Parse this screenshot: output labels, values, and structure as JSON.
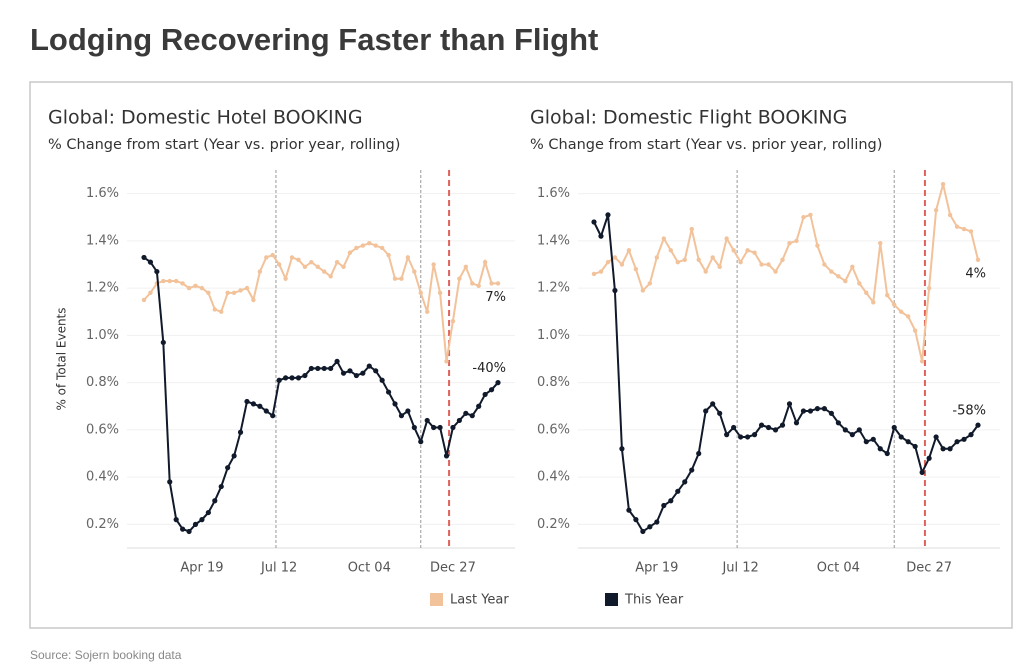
{
  "title": "Lodging Recovering Faster than Flight",
  "source": "Source: Sojern booking data",
  "chart_data": [
    {
      "type": "line",
      "title": "Global: Domestic Hotel BOOKING",
      "subtitle": "% Change from start (Year vs. prior year, rolling)",
      "y_label": "% of Total Events",
      "categories": [
        null,
        null,
        null,
        null,
        null,
        null,
        null,
        null,
        null,
        "Apr 19",
        null,
        null,
        null,
        null,
        null,
        null,
        null,
        null,
        null,
        null,
        null,
        "Jul 12",
        null,
        null,
        null,
        null,
        null,
        null,
        null,
        null,
        null,
        null,
        null,
        null,
        null,
        "Oct 04",
        null,
        null,
        null,
        null,
        null,
        null,
        null,
        null,
        null,
        null,
        null,
        null,
        "Dec 27",
        null,
        null,
        null,
        null,
        null,
        null,
        null
      ],
      "ylim": [
        0.1,
        1.7
      ],
      "yticks": [
        {
          "value": 0.2,
          "label": "0.2%"
        },
        {
          "value": 0.4,
          "label": "0.4%"
        },
        {
          "value": 0.6,
          "label": "0.6%"
        },
        {
          "value": 0.8,
          "label": "0.8%"
        },
        {
          "value": 1.0,
          "label": "1.0%"
        },
        {
          "value": 1.2,
          "label": "1.2%"
        },
        {
          "value": 1.4,
          "label": "1.4%"
        },
        {
          "value": 1.6,
          "label": "1.6%"
        }
      ],
      "grid": true,
      "series": [
        {
          "name": "Last Year",
          "color": "#f2c29a",
          "end_label": "7%",
          "values": [
            1.15,
            1.18,
            1.22,
            1.23,
            1.23,
            1.23,
            1.22,
            1.2,
            1.21,
            1.2,
            1.18,
            1.11,
            1.1,
            1.18,
            1.18,
            1.19,
            1.2,
            1.15,
            1.27,
            1.33,
            1.34,
            1.3,
            1.24,
            1.33,
            1.32,
            1.29,
            1.31,
            1.29,
            1.27,
            1.25,
            1.31,
            1.29,
            1.35,
            1.37,
            1.38,
            1.39,
            1.38,
            1.37,
            1.34,
            1.24,
            1.24,
            1.33,
            1.27,
            1.18,
            1.1,
            1.3,
            1.18,
            0.89,
            1.06,
            1.24,
            1.29,
            1.22,
            1.21,
            1.31,
            1.22,
            1.22
          ]
        },
        {
          "name": "This Year",
          "color": "#111a2b",
          "end_label": "-40%",
          "values": [
            1.33,
            1.31,
            1.27,
            0.97,
            0.38,
            0.22,
            0.18,
            0.17,
            0.2,
            0.22,
            0.25,
            0.3,
            0.36,
            0.44,
            0.49,
            0.59,
            0.72,
            0.71,
            0.7,
            0.68,
            0.66,
            0.81,
            0.82,
            0.82,
            0.82,
            0.83,
            0.86,
            0.86,
            0.86,
            0.86,
            0.89,
            0.84,
            0.85,
            0.83,
            0.84,
            0.87,
            0.85,
            0.81,
            0.76,
            0.71,
            0.66,
            0.68,
            0.61,
            0.55,
            0.64,
            0.61,
            0.61,
            0.49,
            0.61,
            0.64,
            0.67,
            0.66,
            0.7,
            0.75,
            0.77,
            0.8
          ]
        }
      ]
    },
    {
      "type": "line",
      "title": "Global: Domestic Flight BOOKING",
      "subtitle": "% Change from start (Year vs. prior year, rolling)",
      "categories": [
        null,
        null,
        null,
        null,
        null,
        null,
        null,
        null,
        null,
        "Apr 19",
        null,
        null,
        null,
        null,
        null,
        null,
        null,
        null,
        null,
        null,
        null,
        "Jul 12",
        null,
        null,
        null,
        null,
        null,
        null,
        null,
        null,
        null,
        null,
        null,
        null,
        null,
        "Oct 04",
        null,
        null,
        null,
        null,
        null,
        null,
        null,
        null,
        null,
        null,
        null,
        null,
        "Dec 27",
        null,
        null,
        null,
        null,
        null,
        null,
        null
      ],
      "ylim": [
        0.1,
        1.7
      ],
      "yticks": [
        {
          "value": 0.2,
          "label": "0.2%"
        },
        {
          "value": 0.4,
          "label": "0.4%"
        },
        {
          "value": 0.6,
          "label": "0.6%"
        },
        {
          "value": 0.8,
          "label": "0.8%"
        },
        {
          "value": 1.0,
          "label": "1.0%"
        },
        {
          "value": 1.2,
          "label": "1.2%"
        },
        {
          "value": 1.4,
          "label": "1.4%"
        },
        {
          "value": 1.6,
          "label": "1.6%"
        }
      ],
      "grid": true,
      "series": [
        {
          "name": "Last Year",
          "color": "#f2c29a",
          "end_label": "4%",
          "values": [
            1.26,
            1.27,
            1.31,
            1.33,
            1.3,
            1.36,
            1.28,
            1.19,
            1.22,
            1.33,
            1.41,
            1.36,
            1.31,
            1.32,
            1.45,
            1.32,
            1.27,
            1.33,
            1.29,
            1.41,
            1.36,
            1.31,
            1.36,
            1.35,
            1.3,
            1.3,
            1.27,
            1.32,
            1.39,
            1.4,
            1.5,
            1.51,
            1.38,
            1.3,
            1.27,
            1.25,
            1.23,
            1.29,
            1.22,
            1.18,
            1.14,
            1.39,
            1.17,
            1.13,
            1.1,
            1.08,
            1.02,
            0.89,
            1.2,
            1.53,
            1.64,
            1.51,
            1.46,
            1.45,
            1.44,
            1.32
          ]
        },
        {
          "name": "This Year",
          "color": "#111a2b",
          "end_label": "-58%",
          "values": [
            1.48,
            1.42,
            1.51,
            1.19,
            0.52,
            0.26,
            0.22,
            0.17,
            0.19,
            0.21,
            0.28,
            0.3,
            0.34,
            0.38,
            0.43,
            0.5,
            0.68,
            0.71,
            0.67,
            0.58,
            0.61,
            0.57,
            0.57,
            0.58,
            0.62,
            0.61,
            0.6,
            0.62,
            0.71,
            0.63,
            0.68,
            0.68,
            0.69,
            0.69,
            0.67,
            0.63,
            0.6,
            0.58,
            0.6,
            0.55,
            0.56,
            0.52,
            0.5,
            0.61,
            0.57,
            0.55,
            0.53,
            0.42,
            0.48,
            0.57,
            0.52,
            0.52,
            0.55,
            0.56,
            0.58,
            0.62
          ]
        }
      ]
    }
  ]
}
